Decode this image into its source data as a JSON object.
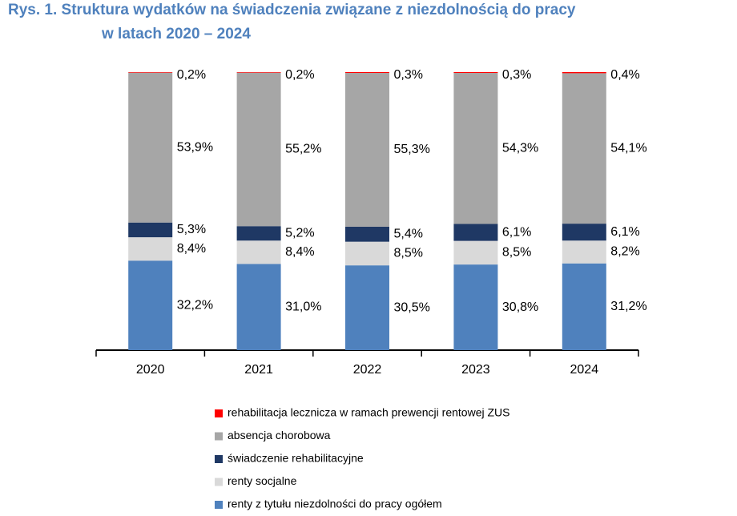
{
  "chart_data": {
    "type": "stacked_bar",
    "title": [
      "Rys. 1.  Struktura wydatków na świadczenia związane z niezdolnością do pracy",
      "w latach 2020 – 2024"
    ],
    "categories": [
      "2020",
      "2021",
      "2022",
      "2023",
      "2024"
    ],
    "series": [
      {
        "name": "renty z tytułu niezdolności do pracy ogółem",
        "color": "#4f81bd",
        "values": [
          32.2,
          31.0,
          30.5,
          30.8,
          31.2
        ],
        "value_labels": [
          "32,2%",
          "31,0%",
          "30,5%",
          "30,8%",
          "31,2%"
        ]
      },
      {
        "name": "renty socjalne",
        "color": "#d9d9d9",
        "values": [
          8.4,
          8.4,
          8.5,
          8.5,
          8.2
        ],
        "value_labels": [
          "8,4%",
          "8,4%",
          "8,5%",
          "8,5%",
          "8,2%"
        ]
      },
      {
        "name": "świadczenie rehabilitacyjne",
        "color": "#1f3864",
        "values": [
          5.3,
          5.2,
          5.4,
          6.1,
          6.1
        ],
        "value_labels": [
          "5,3%",
          "5,2%",
          "5,4%",
          "6,1%",
          "6,1%"
        ]
      },
      {
        "name": "absencja chorobowa",
        "color": "#a6a6a6",
        "values": [
          53.9,
          55.2,
          55.3,
          54.3,
          54.1
        ],
        "value_labels": [
          "53,9%",
          "55,2%",
          "55,3%",
          "54,3%",
          "54,1%"
        ]
      },
      {
        "name": "rehabilitacja lecznicza w ramach prewencji rentowej ZUS",
        "color": "#ff0000",
        "values": [
          0.2,
          0.2,
          0.3,
          0.3,
          0.4
        ],
        "value_labels": [
          "0,2%",
          "0,2%",
          "0,3%",
          "0,3%",
          "0,4%"
        ]
      }
    ]
  }
}
